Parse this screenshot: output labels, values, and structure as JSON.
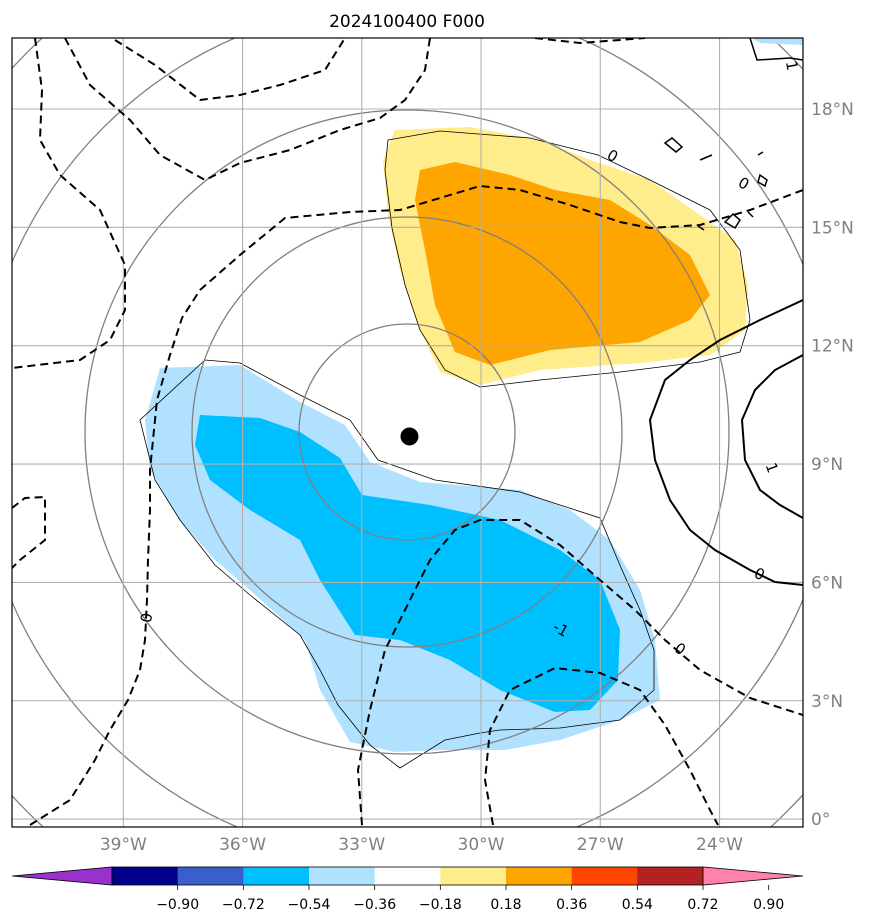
{
  "title": "2024100400 F000",
  "map": {
    "lon_range": [
      -41.8,
      -21.9
    ],
    "lat_range": [
      -0.2,
      19.8
    ],
    "x_ticks": [
      {
        "value": -39,
        "label": "39°W"
      },
      {
        "value": -36,
        "label": "36°W"
      },
      {
        "value": -33,
        "label": "33°W"
      },
      {
        "value": -30,
        "label": "30°W"
      },
      {
        "value": -27,
        "label": "27°W"
      },
      {
        "value": -24,
        "label": "24°W"
      }
    ],
    "y_ticks": [
      {
        "value": 0,
        "label": "0°"
      },
      {
        "value": 3,
        "label": "3°N"
      },
      {
        "value": 6,
        "label": "6°N"
      },
      {
        "value": 9,
        "label": "9°N"
      },
      {
        "value": 12,
        "label": "12°N"
      },
      {
        "value": 15,
        "label": "15°N"
      },
      {
        "value": 18,
        "label": "18°N"
      }
    ],
    "gridlines": true,
    "storm_center": {
      "lon": -31.8,
      "lat": 9.7
    },
    "contour_labels": [
      {
        "text": "0",
        "lon": -38.4,
        "lat": 5.1,
        "rot": -80
      },
      {
        "text": "0",
        "lon": -25.0,
        "lat": 4.3,
        "rot": 35
      },
      {
        "text": "-1",
        "lon": -28.0,
        "lat": 4.8,
        "rot": 30
      },
      {
        "text": "0",
        "lon": -23.0,
        "lat": 6.2,
        "rot": 25
      },
      {
        "text": "1",
        "lon": -22.7,
        "lat": 8.9,
        "rot": 70
      },
      {
        "text": "1",
        "lon": -22.2,
        "lat": 19.1,
        "rot": 80
      },
      {
        "text": "0",
        "lon": -26.7,
        "lat": 16.8,
        "rot": 30
      },
      {
        "text": "0",
        "lon": -23.4,
        "lat": 16.1,
        "rot": 30
      }
    ]
  },
  "colorbar": {
    "tick_labels": [
      "−0.90",
      "−0.72",
      "−0.54",
      "−0.36",
      "−0.18",
      "0.18",
      "0.36",
      "0.54",
      "0.72",
      "0.90"
    ],
    "colors": [
      "#9932cc",
      "#00008b",
      "#3a5fcd",
      "#00bfff",
      "#b0e2ff",
      "#ffffff",
      "#ffec8b",
      "#ffa500",
      "#ff4500",
      "#b22222",
      "#ff82ab"
    ]
  }
}
